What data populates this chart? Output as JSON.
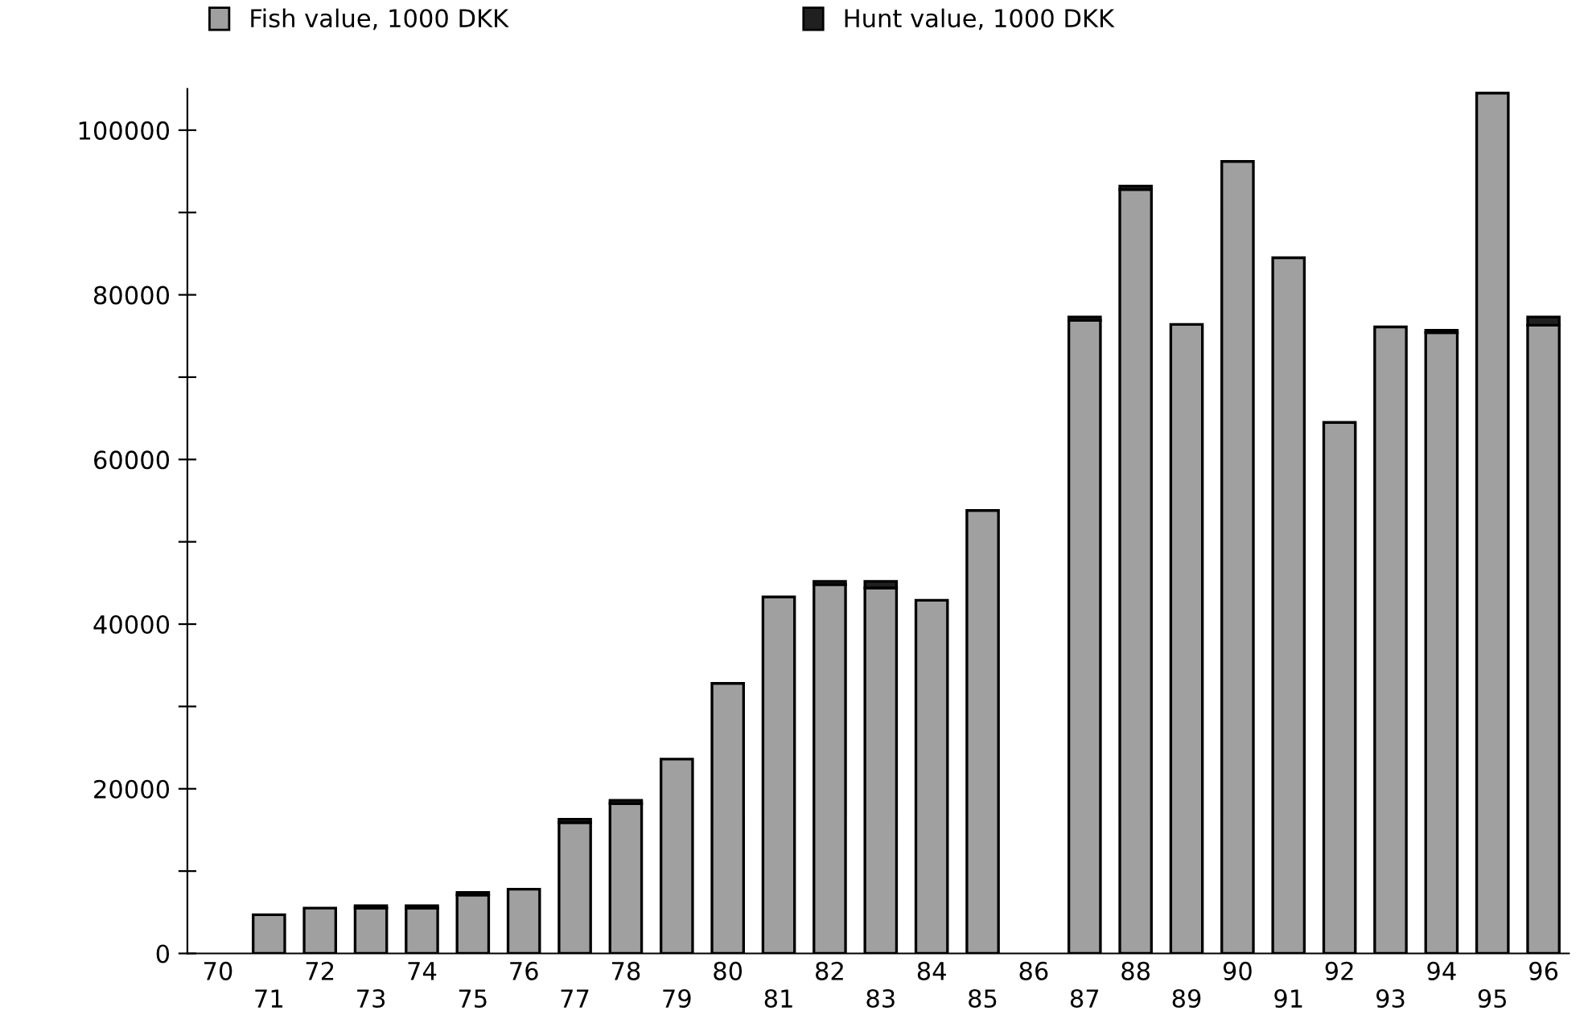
{
  "chart_data": {
    "type": "bar",
    "stacked": true,
    "categories": [
      "70",
      "71",
      "72",
      "73",
      "74",
      "75",
      "76",
      "77",
      "78",
      "79",
      "80",
      "81",
      "82",
      "83",
      "84",
      "85",
      "86",
      "87",
      "88",
      "89",
      "90",
      "91",
      "92",
      "93",
      "94",
      "95",
      "96"
    ],
    "series": [
      {
        "name": "Fish value, 1000 DKK",
        "color": "#a0a0a0",
        "values": [
          0,
          4700,
          5500,
          5500,
          5500,
          7100,
          7800,
          15900,
          18200,
          23600,
          32800,
          43300,
          44800,
          44400,
          42900,
          53800,
          0,
          76900,
          92800,
          76400,
          96200,
          84500,
          64500,
          76100,
          75400,
          104500,
          76300
        ]
      },
      {
        "name": "Hunt value, 1000 DKK",
        "color": "#202020",
        "values": [
          0,
          0,
          0,
          300,
          300,
          300,
          0,
          400,
          400,
          0,
          0,
          0,
          400,
          800,
          0,
          0,
          0,
          400,
          400,
          0,
          0,
          0,
          0,
          0,
          300,
          0,
          1000
        ]
      }
    ],
    "ylim": [
      0,
      105000
    ],
    "yticks": [
      0,
      {
        "value": 10000,
        "label": null
      },
      20000,
      {
        "value": 30000,
        "label": null
      },
      40000,
      {
        "value": 50000,
        "label": null
      },
      60000,
      {
        "value": 70000,
        "label": null
      },
      80000,
      {
        "value": 90000,
        "label": null
      },
      100000
    ],
    "grid": false,
    "legend": "top"
  }
}
